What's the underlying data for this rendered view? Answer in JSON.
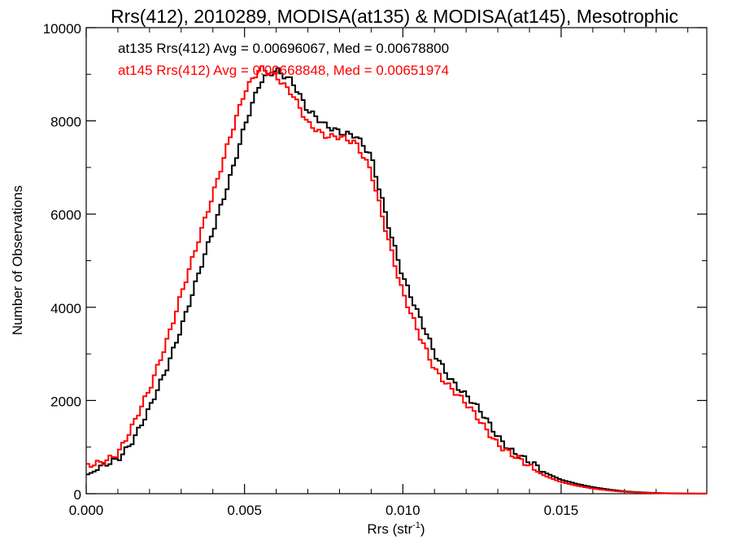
{
  "chart_data": {
    "type": "line",
    "title": "Rrs(412), 2010289, MODISA(at135) & MODISA(at145), Mesotrophic",
    "xlabel": "Rrs (str",
    "xlabel_sup": "-1",
    "xlabel_end": ")",
    "ylabel": "Number of Observations",
    "xlim": [
      0.0,
      0.0196
    ],
    "ylim": [
      0,
      10000
    ],
    "xticks": [
      0.0,
      0.005,
      0.01,
      0.015
    ],
    "xtick_labels": [
      "0.000",
      "0.005",
      "0.010",
      "0.015"
    ],
    "yticks": [
      0,
      2000,
      4000,
      6000,
      8000,
      10000
    ],
    "ytick_labels": [
      "0",
      "2000",
      "4000",
      "6000",
      "8000",
      "10000"
    ],
    "step": true,
    "series": [
      {
        "color": "#000000",
        "label": "at135 Rrs(412) Avg = 0.00696067, Med = 0.00678800",
        "x": [
          0.0,
          0.0005,
          0.001,
          0.0015,
          0.002,
          0.0025,
          0.003,
          0.0035,
          0.004,
          0.0045,
          0.005,
          0.0055,
          0.006,
          0.0065,
          0.007,
          0.0075,
          0.008,
          0.0085,
          0.009,
          0.0095,
          0.01,
          0.0105,
          0.011,
          0.0115,
          0.012,
          0.0125,
          0.013,
          0.0135,
          0.014,
          0.0145,
          0.015,
          0.0155,
          0.016,
          0.0165,
          0.017,
          0.0175,
          0.018,
          0.0185,
          0.019,
          0.0196
        ],
        "y": [
          400,
          550,
          750,
          1200,
          1800,
          2600,
          3600,
          4600,
          5600,
          6700,
          7900,
          8800,
          9100,
          8900,
          8200,
          7900,
          7800,
          7700,
          7200,
          5900,
          4700,
          3800,
          3000,
          2500,
          2100,
          1700,
          1250,
          900,
          650,
          450,
          300,
          210,
          140,
          90,
          50,
          30,
          15,
          8,
          4,
          2
        ]
      },
      {
        "color": "#ff0000",
        "label": "at145 Rrs(412) Avg = 0.00668848, Med = 0.00651974",
        "x": [
          0.0,
          0.0005,
          0.001,
          0.0015,
          0.002,
          0.0025,
          0.003,
          0.0035,
          0.004,
          0.0045,
          0.005,
          0.0055,
          0.006,
          0.0065,
          0.007,
          0.0075,
          0.008,
          0.0085,
          0.009,
          0.0095,
          0.01,
          0.0105,
          0.011,
          0.0115,
          0.012,
          0.0125,
          0.013,
          0.0135,
          0.014,
          0.0145,
          0.015,
          0.0155,
          0.016,
          0.0165,
          0.017,
          0.0175,
          0.018,
          0.0185,
          0.019,
          0.0196
        ],
        "y": [
          550,
          650,
          900,
          1500,
          2200,
          3200,
          4300,
          5300,
          6400,
          7600,
          8600,
          9100,
          9000,
          8600,
          7900,
          7700,
          7700,
          7500,
          6900,
          5600,
          4300,
          3400,
          2700,
          2300,
          1900,
          1500,
          1100,
          800,
          560,
          380,
          250,
          170,
          110,
          70,
          40,
          24,
          12,
          6,
          3,
          1
        ]
      }
    ]
  }
}
